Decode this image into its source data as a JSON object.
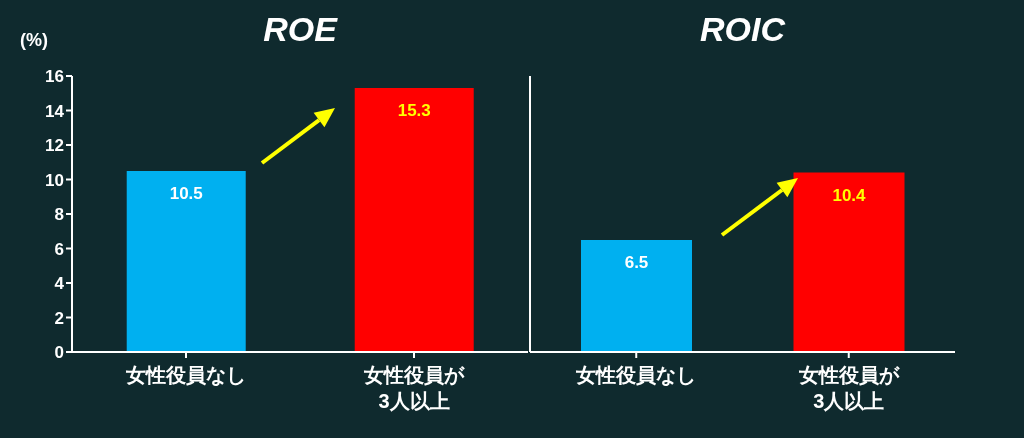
{
  "chart_data": [
    {
      "type": "bar",
      "title": "ROE",
      "ylabel": "(%)",
      "categories": [
        "女性役員なし",
        "女性役員が\n3人以上"
      ],
      "values": [
        10.5,
        15.3
      ],
      "colors": [
        "#00b0f0",
        "#ff0000"
      ],
      "ylim": [
        0,
        16
      ],
      "yticks": [
        0,
        2,
        4,
        6,
        8,
        10,
        12,
        14,
        16
      ],
      "data_labels": true
    },
    {
      "type": "bar",
      "title": "ROIC",
      "categories": [
        "女性役員なし",
        "女性役員が\n3人以上"
      ],
      "values": [
        6.5,
        10.4
      ],
      "colors": [
        "#00b0f0",
        "#ff0000"
      ],
      "ylim": [
        0,
        16
      ],
      "data_labels": true,
      "tick_labels": "x"
    }
  ]
}
